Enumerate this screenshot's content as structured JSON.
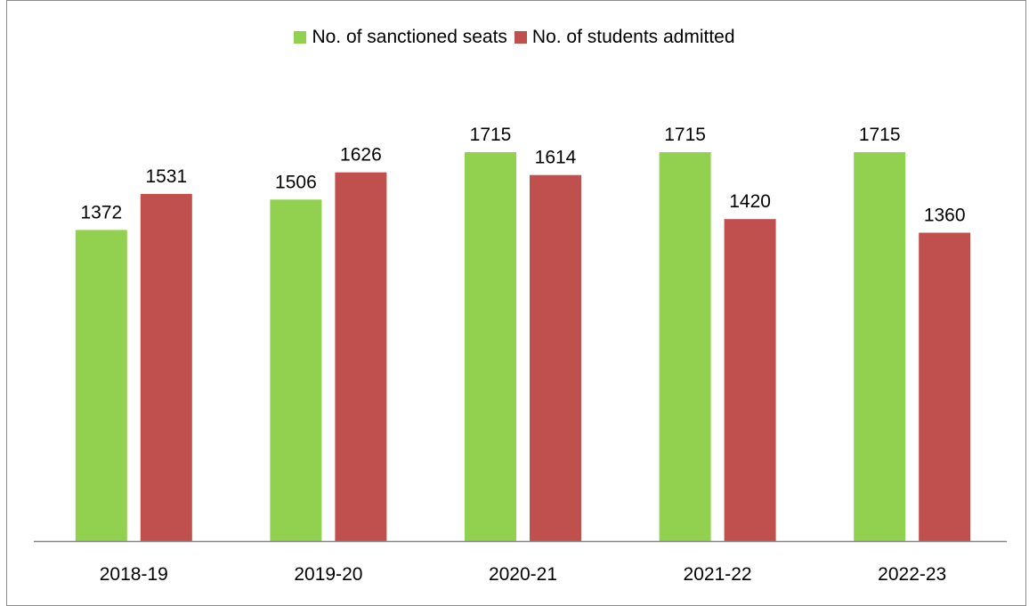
{
  "chart_data": {
    "type": "bar",
    "title": "",
    "xlabel": "",
    "ylabel": "",
    "categories": [
      "2018-19",
      "2019-20",
      "2020-21",
      "2021-22",
      "2022-23"
    ],
    "series": [
      {
        "name": "No. of sanctioned seats",
        "color": "#92d050",
        "values": [
          1372,
          1506,
          1715,
          1715,
          1715
        ]
      },
      {
        "name": "No. of students admitted",
        "color": "#c0504d",
        "values": [
          1531,
          1626,
          1614,
          1420,
          1360
        ]
      }
    ],
    "ylim": [
      0,
      1715
    ],
    "grid": false,
    "legend_position": "top-center",
    "data_labels": true
  }
}
